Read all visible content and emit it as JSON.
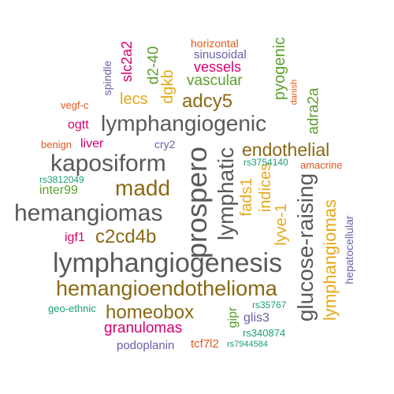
{
  "colors": {
    "gray": "#595959",
    "brown": "#8B6914",
    "green": "#5AA02C",
    "gold": "#E6A817",
    "magenta": "#D6006F",
    "purple": "#6B5FA8",
    "orange": "#E0591A",
    "teal": "#1B9E77"
  },
  "words": [
    {
      "text": "lymphangiogenesis",
      "color": "gray"
    },
    {
      "text": "hemangiomas",
      "color": "gray"
    },
    {
      "text": "prospero",
      "color": "gray"
    },
    {
      "text": "lymphangiogenic",
      "color": "gray"
    },
    {
      "text": "kaposiform",
      "color": "gray"
    },
    {
      "text": "glucose-raising",
      "color": "gray"
    },
    {
      "text": "lymphatic",
      "color": "gray"
    },
    {
      "text": "hemangioendothelioma",
      "color": "brown"
    },
    {
      "text": "madd",
      "color": "brown"
    },
    {
      "text": "c2cd4b",
      "color": "brown"
    },
    {
      "text": "endothelial",
      "color": "brown"
    },
    {
      "text": "homeobox",
      "color": "brown"
    },
    {
      "text": "adcy5",
      "color": "brown"
    },
    {
      "text": "lymphangiomas",
      "color": "gold"
    },
    {
      "text": "fads1",
      "color": "gold"
    },
    {
      "text": "lyve-1",
      "color": "gold"
    },
    {
      "text": "indices",
      "color": "gold"
    },
    {
      "text": "lecs",
      "color": "gold"
    },
    {
      "text": "dgkb",
      "color": "gold"
    },
    {
      "text": "tcf7l2",
      "color": "orange"
    },
    {
      "text": "vascular",
      "color": "green"
    },
    {
      "text": "d2-40",
      "color": "green"
    },
    {
      "text": "pyogenic",
      "color": "green"
    },
    {
      "text": "adra2a",
      "color": "green"
    },
    {
      "text": "inter99",
      "color": "green"
    },
    {
      "text": "gipr",
      "color": "green"
    },
    {
      "text": "vessels",
      "color": "magenta"
    },
    {
      "text": "slc2a2",
      "color": "magenta"
    },
    {
      "text": "granulomas",
      "color": "magenta"
    },
    {
      "text": "liver",
      "color": "magenta"
    },
    {
      "text": "igf1",
      "color": "magenta"
    },
    {
      "text": "ogtt",
      "color": "magenta"
    },
    {
      "text": "sinusoidal",
      "color": "purple"
    },
    {
      "text": "spindle",
      "color": "purple"
    },
    {
      "text": "cry2",
      "color": "purple"
    },
    {
      "text": "hepatocellular",
      "color": "purple"
    },
    {
      "text": "podoplanin",
      "color": "purple"
    },
    {
      "text": "glis3",
      "color": "purple"
    },
    {
      "text": "horizontal",
      "color": "orange"
    },
    {
      "text": "danish",
      "color": "orange"
    },
    {
      "text": "vegf-c",
      "color": "orange"
    },
    {
      "text": "benign",
      "color": "orange"
    },
    {
      "text": "amacrine",
      "color": "orange"
    },
    {
      "text": "rs3754140",
      "color": "teal"
    },
    {
      "text": "rs3812049",
      "color": "teal"
    },
    {
      "text": "rs35767",
      "color": "teal"
    },
    {
      "text": "rs340874",
      "color": "teal"
    },
    {
      "text": "rs7944584",
      "color": "teal"
    },
    {
      "text": "geo-ethnic",
      "color": "teal"
    }
  ]
}
